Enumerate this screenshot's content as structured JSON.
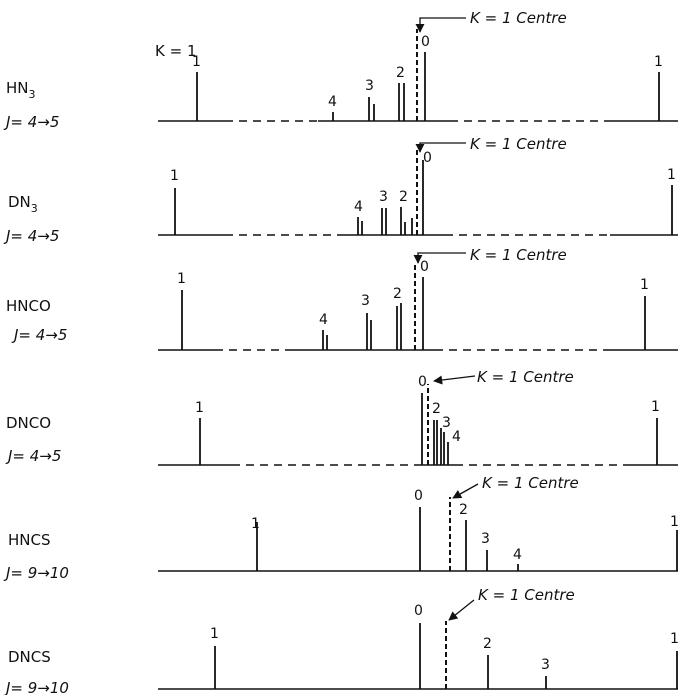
{
  "figure": {
    "k_equals_1_label": "K = 1",
    "panels": [
      {
        "molecule": "HN",
        "subscript": "3",
        "transition": "J= 4→5",
        "centre_label": "K = 1 Centre",
        "peaks": [
          {
            "label": "1"
          },
          {
            "label": "4"
          },
          {
            "label": "3"
          },
          {
            "label": "2"
          },
          {
            "label": "0"
          },
          {
            "label": "1"
          }
        ]
      },
      {
        "molecule": "DN",
        "subscript": "3",
        "transition": "J= 4→5",
        "centre_label": "K = 1 Centre",
        "peaks": [
          {
            "label": "1"
          },
          {
            "label": "4"
          },
          {
            "label": "3"
          },
          {
            "label": "2"
          },
          {
            "label": "0"
          },
          {
            "label": "1"
          }
        ]
      },
      {
        "molecule": "HNCO",
        "subscript": "",
        "transition": "J= 4→5",
        "centre_label": "K = 1 Centre",
        "peaks": [
          {
            "label": "1"
          },
          {
            "label": "4"
          },
          {
            "label": "3"
          },
          {
            "label": "2"
          },
          {
            "label": "0"
          },
          {
            "label": "1"
          }
        ]
      },
      {
        "molecule": "DNCO",
        "subscript": "",
        "transition": "J= 4→5",
        "centre_label": "K = 1 Centre",
        "peaks": [
          {
            "label": "1"
          },
          {
            "label": "0"
          },
          {
            "label": "2"
          },
          {
            "label": "3"
          },
          {
            "label": "4"
          },
          {
            "label": "1"
          }
        ]
      },
      {
        "molecule": "HNCS",
        "subscript": "",
        "transition": "J= 9→10",
        "centre_label": "K = 1 Centre",
        "peaks": [
          {
            "label": "1"
          },
          {
            "label": "0"
          },
          {
            "label": "2"
          },
          {
            "label": "3"
          },
          {
            "label": "4"
          },
          {
            "label": "1"
          }
        ]
      },
      {
        "molecule": "DNCS",
        "subscript": "",
        "transition": "J= 9→10",
        "centre_label": "K = 1 Centre",
        "peaks": [
          {
            "label": "1"
          },
          {
            "label": "0"
          },
          {
            "label": "2"
          },
          {
            "label": "3"
          },
          {
            "label": "1"
          }
        ]
      }
    ]
  }
}
